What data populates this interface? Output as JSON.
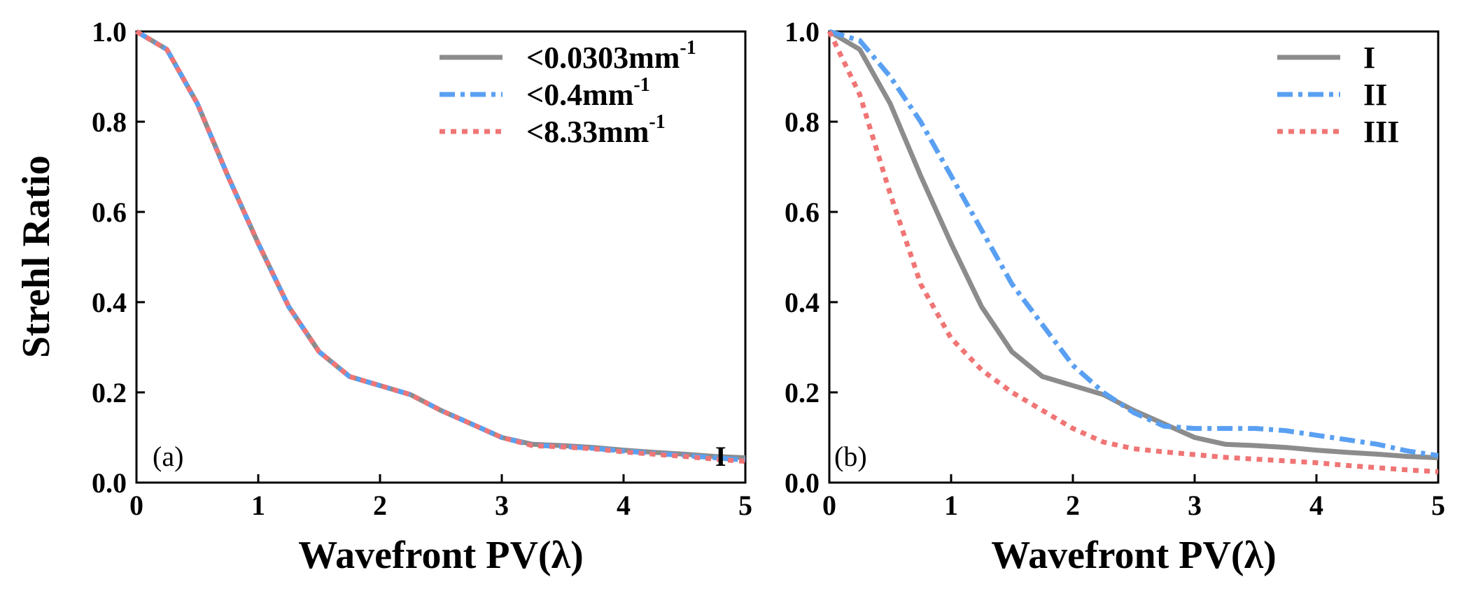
{
  "colors": {
    "gray": "#8c8c8c",
    "blue": "#5aa0f2",
    "red": "#f07575",
    "frame": "#000000"
  },
  "chart_data": [
    {
      "type": "line",
      "panel_label": "(a)",
      "curve_tag": "I",
      "xlabel": "Wavefront PV(λ)",
      "ylabel": "Strehl Ratio",
      "xlim": [
        0,
        5
      ],
      "ylim": [
        0,
        1
      ],
      "xticks": [
        "0",
        "1",
        "2",
        "3",
        "4",
        "5"
      ],
      "yticks": [
        "0.0",
        "0.2",
        "0.4",
        "0.6",
        "0.8",
        "1.0"
      ],
      "legend_position": "top-right",
      "series": [
        {
          "name": "<0.0303mm",
          "superscript": "-1",
          "color": "gray",
          "style": "solid",
          "x": [
            0,
            0.25,
            0.5,
            0.75,
            1.0,
            1.25,
            1.5,
            1.75,
            2.0,
            2.25,
            2.5,
            2.75,
            3.0,
            3.25,
            3.5,
            3.75,
            4.0,
            4.25,
            4.5,
            4.75,
            5.0
          ],
          "y": [
            1.0,
            0.96,
            0.84,
            0.68,
            0.53,
            0.39,
            0.29,
            0.235,
            0.215,
            0.195,
            0.16,
            0.13,
            0.1,
            0.085,
            0.082,
            0.078,
            0.072,
            0.067,
            0.063,
            0.058,
            0.055
          ]
        },
        {
          "name": "<0.4mm",
          "superscript": "-1",
          "color": "blue",
          "style": "dashdot",
          "x": [
            0,
            0.25,
            0.5,
            0.75,
            1.0,
            1.25,
            1.5,
            1.75,
            2.0,
            2.25,
            2.5,
            2.75,
            3.0,
            3.25,
            3.5,
            3.75,
            4.0,
            4.25,
            4.5,
            4.75,
            5.0
          ],
          "y": [
            1.0,
            0.96,
            0.84,
            0.68,
            0.53,
            0.39,
            0.29,
            0.235,
            0.215,
            0.195,
            0.16,
            0.13,
            0.1,
            0.083,
            0.08,
            0.076,
            0.07,
            0.065,
            0.06,
            0.055,
            0.05
          ]
        },
        {
          "name": "<8.33mm",
          "superscript": "-1",
          "color": "red",
          "style": "dotted",
          "x": [
            0,
            0.25,
            0.5,
            0.75,
            1.0,
            1.25,
            1.5,
            1.75,
            2.0,
            2.25,
            2.5,
            2.75,
            3.0,
            3.25,
            3.5,
            3.75,
            4.0,
            4.25,
            4.5,
            4.75,
            5.0
          ],
          "y": [
            1.0,
            0.96,
            0.84,
            0.68,
            0.53,
            0.39,
            0.29,
            0.235,
            0.215,
            0.195,
            0.16,
            0.13,
            0.1,
            0.082,
            0.079,
            0.075,
            0.068,
            0.063,
            0.058,
            0.052,
            0.047
          ]
        }
      ]
    },
    {
      "type": "line",
      "panel_label": "(b)",
      "xlabel": "Wavefront PV(λ)",
      "ylabel": "",
      "xlim": [
        0,
        5
      ],
      "ylim": [
        0,
        1
      ],
      "xticks": [
        "0",
        "1",
        "2",
        "3",
        "4",
        "5"
      ],
      "yticks": [
        "0.0",
        "0.2",
        "0.4",
        "0.6",
        "0.8",
        "1.0"
      ],
      "legend_position": "top-right",
      "series": [
        {
          "name": "I",
          "color": "gray",
          "style": "solid",
          "x": [
            0,
            0.25,
            0.5,
            0.75,
            1.0,
            1.25,
            1.5,
            1.75,
            2.0,
            2.25,
            2.5,
            2.75,
            3.0,
            3.25,
            3.5,
            3.75,
            4.0,
            4.25,
            4.5,
            4.75,
            5.0
          ],
          "y": [
            1.0,
            0.96,
            0.84,
            0.68,
            0.53,
            0.39,
            0.29,
            0.235,
            0.215,
            0.195,
            0.16,
            0.13,
            0.1,
            0.085,
            0.082,
            0.078,
            0.072,
            0.067,
            0.063,
            0.058,
            0.055
          ]
        },
        {
          "name": "II",
          "color": "blue",
          "style": "dashdot",
          "x": [
            0,
            0.25,
            0.5,
            0.75,
            1.0,
            1.25,
            1.5,
            1.75,
            2.0,
            2.25,
            2.5,
            2.75,
            3.0,
            3.25,
            3.5,
            3.75,
            4.0,
            4.25,
            4.5,
            4.75,
            5.0
          ],
          "y": [
            1.0,
            0.98,
            0.9,
            0.8,
            0.68,
            0.56,
            0.44,
            0.35,
            0.26,
            0.2,
            0.155,
            0.125,
            0.12,
            0.12,
            0.12,
            0.115,
            0.105,
            0.095,
            0.085,
            0.07,
            0.06
          ]
        },
        {
          "name": "III",
          "color": "red",
          "style": "dotted",
          "x": [
            0,
            0.25,
            0.5,
            0.75,
            1.0,
            1.25,
            1.5,
            1.75,
            2.0,
            2.25,
            2.5,
            2.75,
            3.0,
            3.25,
            3.5,
            3.75,
            4.0,
            4.25,
            4.5,
            4.75,
            5.0
          ],
          "y": [
            1.0,
            0.86,
            0.64,
            0.44,
            0.32,
            0.25,
            0.2,
            0.16,
            0.12,
            0.09,
            0.075,
            0.068,
            0.062,
            0.056,
            0.052,
            0.048,
            0.044,
            0.038,
            0.033,
            0.028,
            0.024
          ]
        }
      ]
    }
  ]
}
